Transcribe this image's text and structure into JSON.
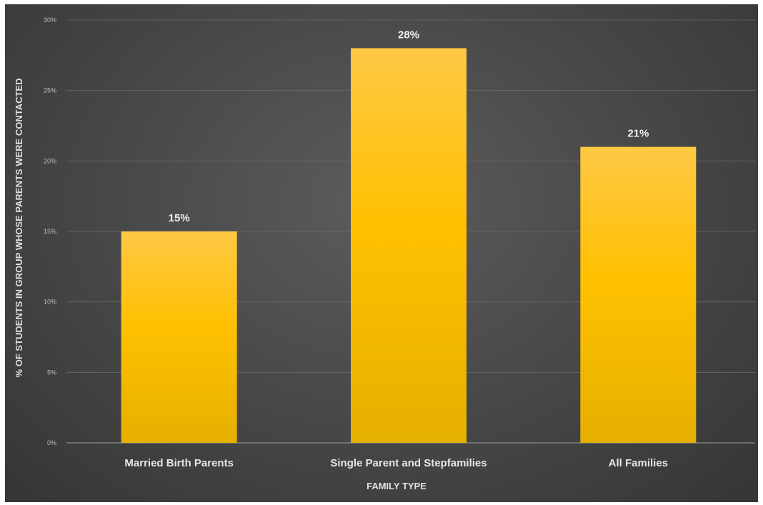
{
  "chart_data": {
    "type": "bar",
    "categories": [
      "Married Birth Parents",
      "Single Parent and Stepfamilies",
      "All Families"
    ],
    "values": [
      15,
      28,
      21
    ],
    "data_labels": [
      "15%",
      "28%",
      "21%"
    ],
    "title": "",
    "xlabel": "FAMILY TYPE",
    "ylabel": "% OF STUDENTS IN GROUP WHOSE PARENTS WERE CONTACTED",
    "ylim": [
      0,
      30
    ],
    "yticks": [
      0,
      5,
      10,
      15,
      20,
      25,
      30
    ],
    "ytick_labels": [
      "0%",
      "5%",
      "10%",
      "15%",
      "20%",
      "25%",
      "30%"
    ],
    "grid": true,
    "legend": "none",
    "colors": {
      "bar_top": "#ffc845",
      "bar_mid": "#ffc000",
      "bar_bottom": "#e6b000",
      "gridline": "#6a6a6a"
    }
  }
}
